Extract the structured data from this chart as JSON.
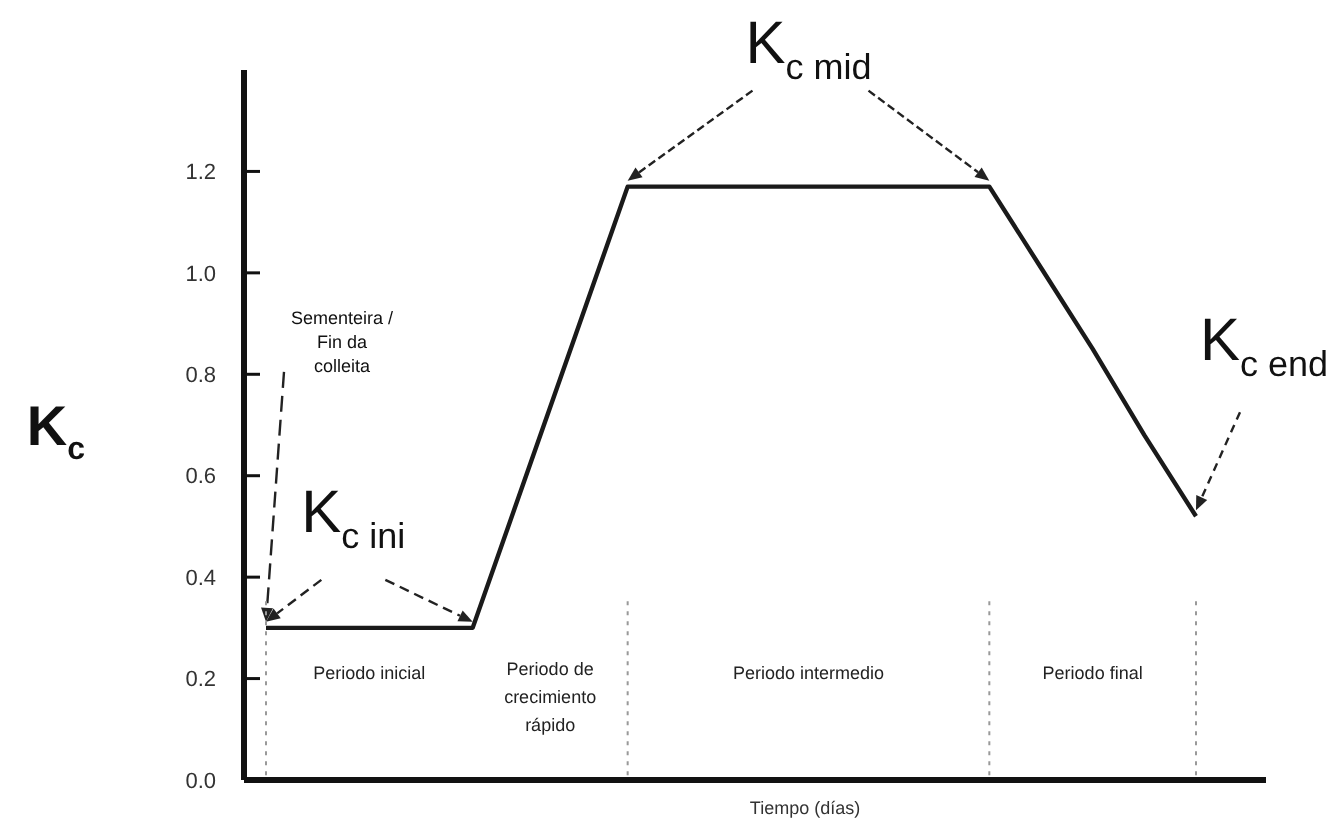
{
  "chart_data": {
    "type": "line",
    "ylabel": "K$_{c}$",
    "xlabel": "Tiempo (días)",
    "categories": [
      null,
      null,
      null,
      null,
      null,
      null,
      null,
      null,
      null,
      null,
      null,
      null,
      null,
      null,
      null,
      null,
      null,
      null,
      null
    ],
    "series": [
      {
        "color": "#1a1a1a",
        "values": [
          0.3,
          0.3,
          0.3,
          0.3,
          0.3,
          0.59,
          0.88,
          1.17,
          1.17,
          1.17,
          1.17,
          1.17,
          1.17,
          1.17,
          1.17,
          1.01,
          0.85,
          0.68,
          0.52
        ]
      }
    ],
    "ylim": [
      0,
      1.4
    ],
    "yticks": [
      {
        "value": 0,
        "label": "0.0"
      },
      {
        "value": 0.2,
        "label": "0.2"
      },
      {
        "value": 0.4,
        "label": "0.4"
      },
      {
        "value": 0.6,
        "label": "0.6"
      },
      {
        "value": 0.8,
        "label": "0.8"
      },
      {
        "value": 1,
        "label": "1.0"
      },
      {
        "value": 1.2,
        "label": "1.2"
      }
    ],
    "marker": "none",
    "line_style": "solid",
    "grid": false,
    "annotations": [
      "K$_{c ini}$",
      "K$_{c mid}$",
      "K$_{c end}$",
      "Sementeira / Fin da colleita",
      "Periodo inicial",
      "Periodo de crecimiento rápido",
      "Periodo intermedio",
      "Periodo final"
    ]
  }
}
